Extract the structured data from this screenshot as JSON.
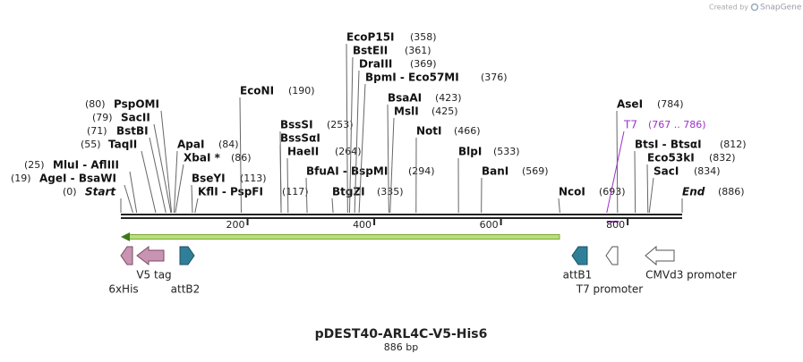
{
  "watermark": {
    "prefix": "Created by",
    "brand": "SnapGene"
  },
  "enzymes": [
    {
      "name": "PspOMI",
      "site": "(80)"
    },
    {
      "name": "SacII",
      "site": "(79)"
    },
    {
      "name": "BstBI",
      "site": "(71)"
    },
    {
      "name": "TaqII",
      "site": "(55)"
    },
    {
      "name": "MluI  -  AflIII",
      "site": "(25)"
    },
    {
      "name": "AgeI  -  BsaWI",
      "site": "(19)"
    },
    {
      "name": "Start",
      "site": "(0)"
    },
    {
      "name": "ApaI",
      "site": "(84)"
    },
    {
      "name": "XbaI *",
      "site": "(86)"
    },
    {
      "name": "BseYI",
      "site": "(113)"
    },
    {
      "name": "KflI  -  PspFI",
      "site": "(117)"
    },
    {
      "name": "EcoNI",
      "site": "(190)"
    },
    {
      "name": "BssSI",
      "site": "(253)"
    },
    {
      "name": "BssSαI"
    },
    {
      "name": "HaeII",
      "site": "(264)"
    },
    {
      "name": "BfuAI  -  BspMI",
      "site": "(294)"
    },
    {
      "name": "BtgZI",
      "site": "(335)"
    },
    {
      "name": "EcoP15I",
      "site": "(358)"
    },
    {
      "name": "BstEII",
      "site": "(361)"
    },
    {
      "name": "DraIII",
      "site": "(369)"
    },
    {
      "name": "BpmI  -  Eco57MI",
      "site": "(376)"
    },
    {
      "name": "BsaAI",
      "site": "(423)"
    },
    {
      "name": "MslI",
      "site": "(425)"
    },
    {
      "name": "NotI",
      "site": "(466)"
    },
    {
      "name": "BlpI",
      "site": "(533)"
    },
    {
      "name": "BanI",
      "site": "(569)"
    },
    {
      "name": "NcoI",
      "site": "(693)"
    },
    {
      "name": "AseI",
      "site": "(784)"
    },
    {
      "name": "T7",
      "site": "(767 .. 786)"
    },
    {
      "name": "BtsI  -  BtsαI",
      "site": "(812)"
    },
    {
      "name": "Eco53kI",
      "site": "(832)"
    },
    {
      "name": "SacI",
      "site": "(834)"
    },
    {
      "name": "End",
      "site": "(886)"
    }
  ],
  "ruler": {
    "ticks": [
      200,
      400,
      600,
      800
    ]
  },
  "features": [
    {
      "label": "6xHis"
    },
    {
      "label": "V5 tag"
    },
    {
      "label": "attB2"
    },
    {
      "label": "attB1"
    },
    {
      "label": "T7 promoter"
    },
    {
      "label": "CMVd3 promoter"
    }
  ],
  "title": "pDEST40-ARL4C-V5-His6",
  "length": "886 bp"
}
